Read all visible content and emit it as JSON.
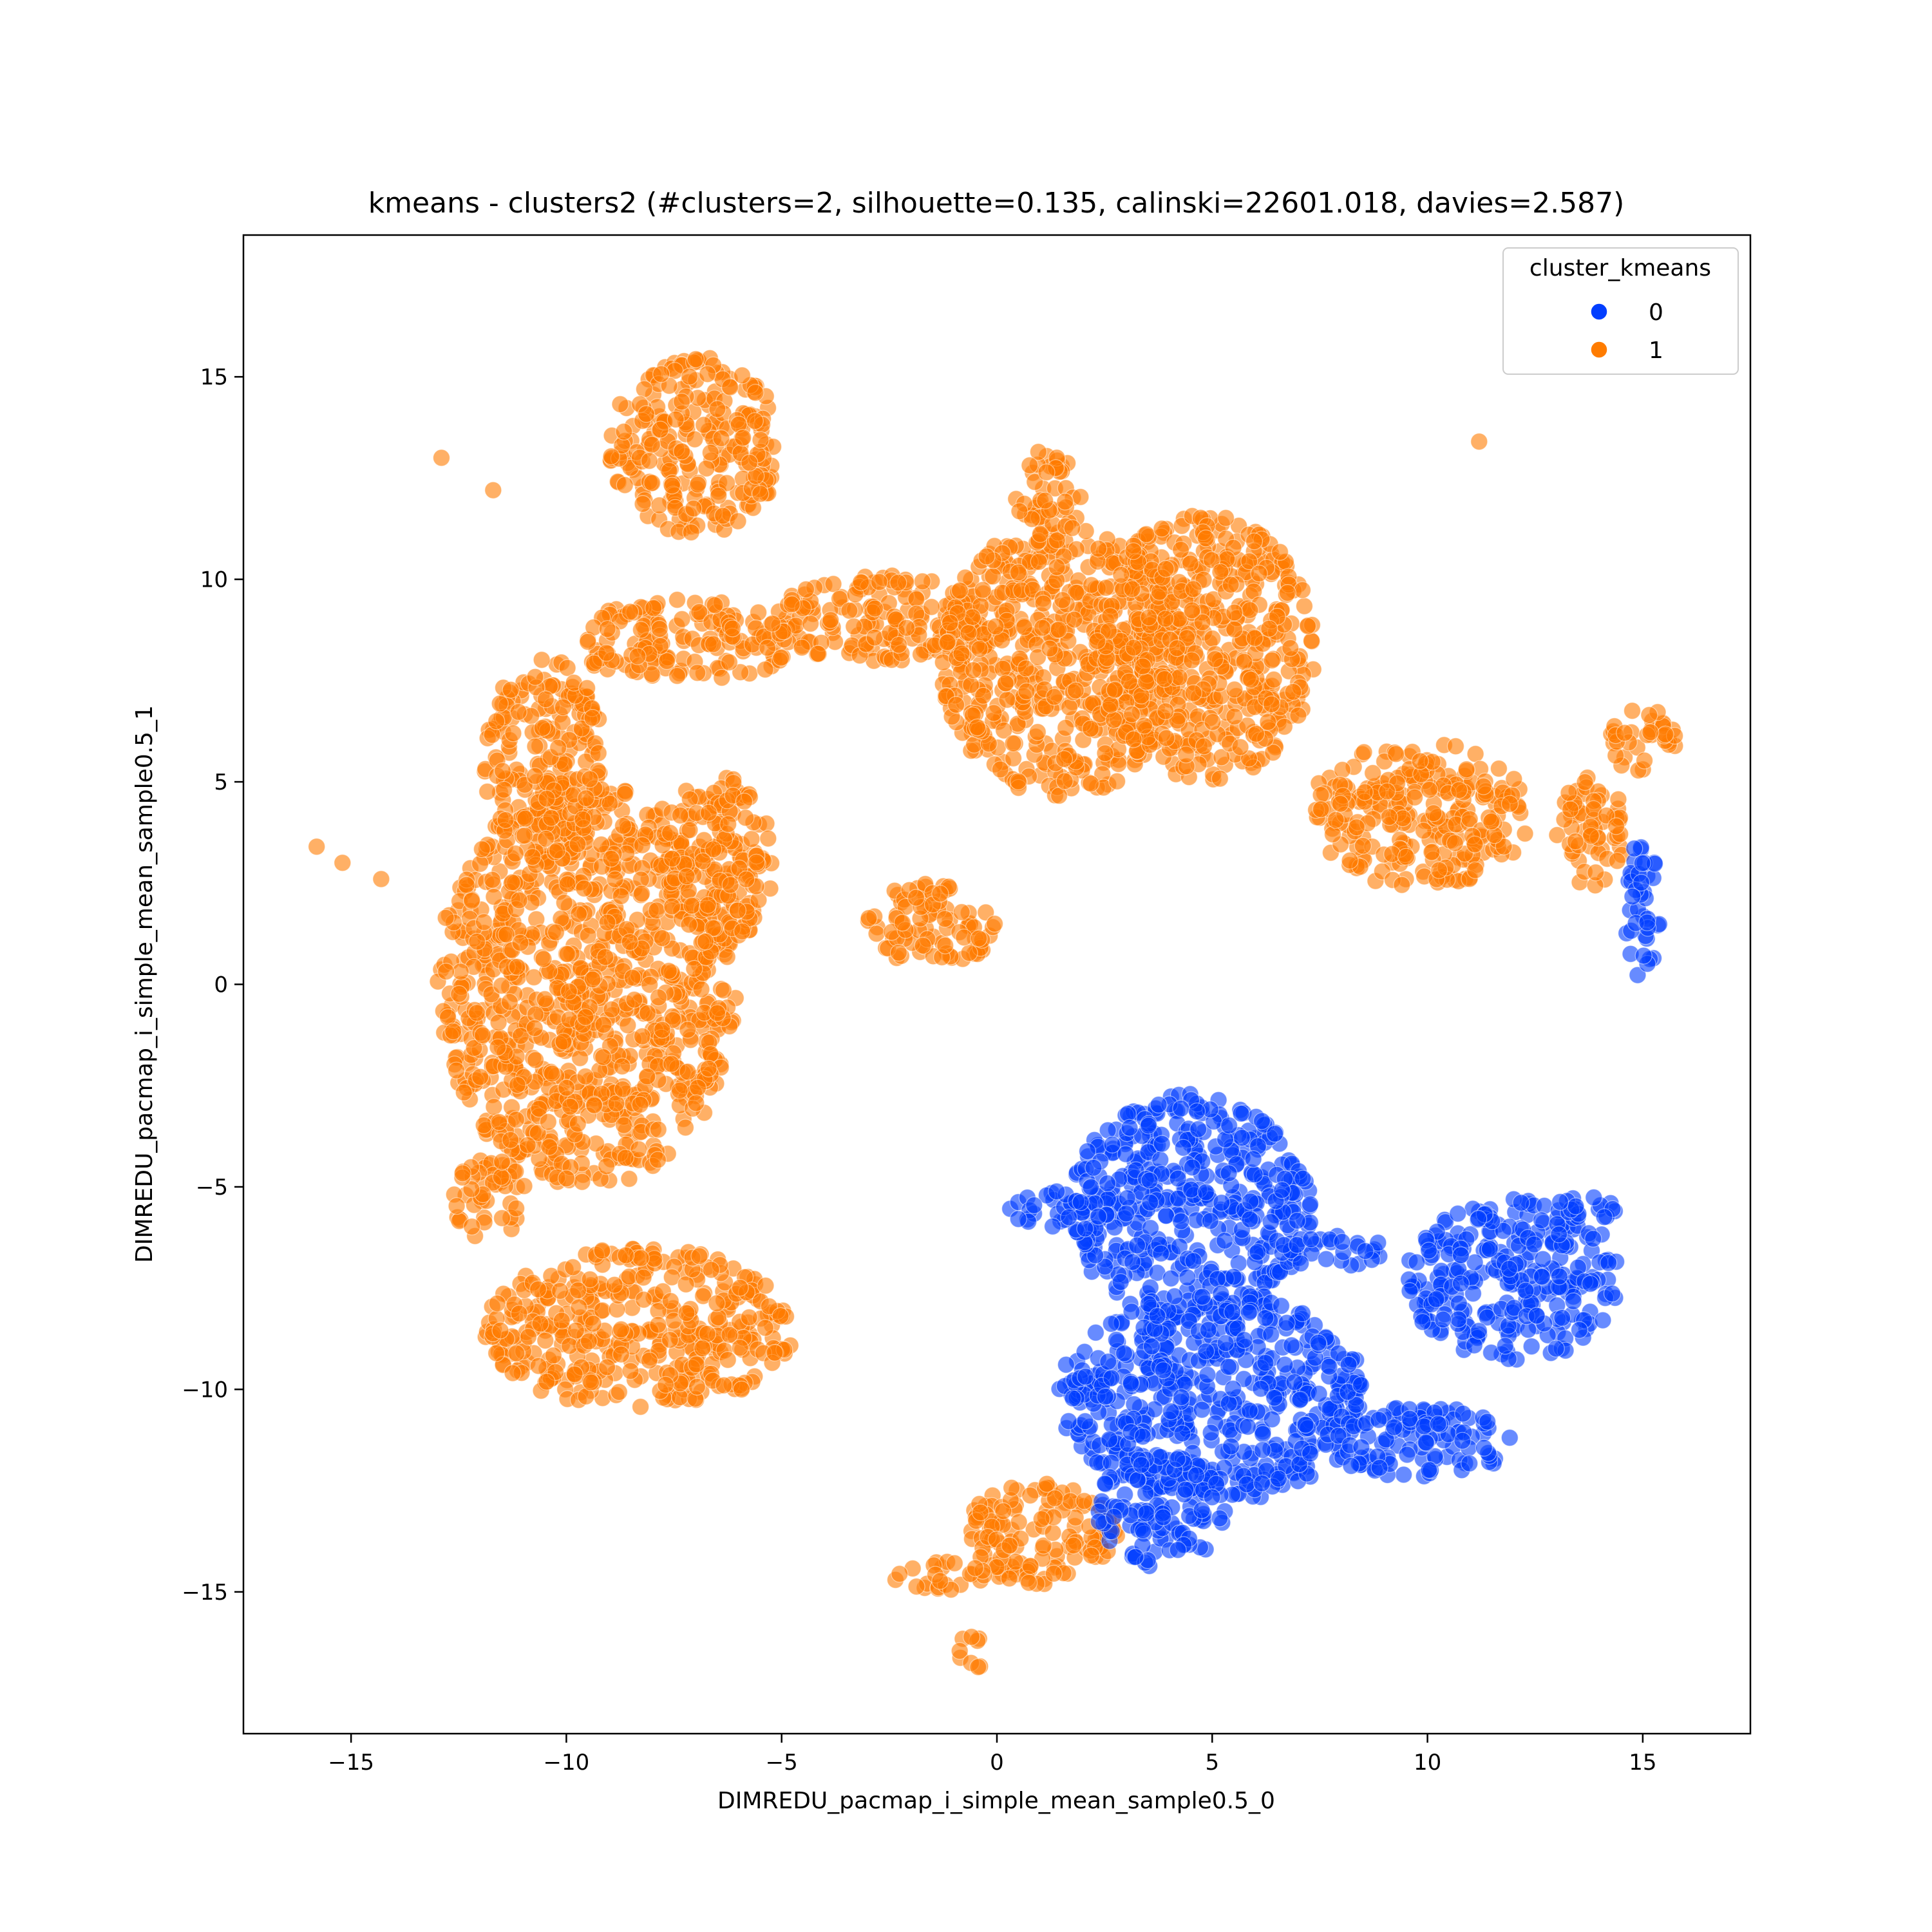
{
  "chart_data": {
    "type": "scatter",
    "title": "kmeans - clusters2 (#clusters=2, silhouette=0.135, calinski=22601.018, davies=2.587)",
    "xlabel": "DIMREDU_pacmap_i_simple_mean_sample0.5_0",
    "ylabel": "DIMREDU_pacmap_i_simple_mean_sample0.5_1",
    "xlim": [
      -17.5,
      17.5
    ],
    "ylim": [
      -18.5,
      18.5
    ],
    "xticks": [
      -15,
      -10,
      -5,
      0,
      5,
      10,
      15
    ],
    "yticks": [
      -15,
      -10,
      -5,
      0,
      5,
      10,
      15
    ],
    "xtick_labels": [
      "−15",
      "−10",
      "−5",
      "0",
      "5",
      "10",
      "15"
    ],
    "ytick_labels": [
      "−15",
      "−10",
      "−5",
      "0",
      "5",
      "10",
      "15"
    ],
    "grid": false,
    "legend": {
      "title": "cluster_kmeans",
      "placement": "top-right",
      "entries": [
        {
          "label": "0",
          "color": "#023eff"
        },
        {
          "label": "1",
          "color": "#ff7c00"
        }
      ]
    },
    "series": [
      {
        "name": "0",
        "color": "#023eff",
        "regions": [
          {
            "cx": 4.5,
            "cy": -5.5,
            "rx": 2.8,
            "ry": 2.8
          },
          {
            "cx": 1.5,
            "cy": -5.6,
            "rx": 1.2,
            "ry": 0.5
          },
          {
            "cx": 5.0,
            "cy": -10.2,
            "rx": 3.6,
            "ry": 2.6
          },
          {
            "cx": 12.0,
            "cy": -7.3,
            "rx": 2.5,
            "ry": 2.0
          },
          {
            "cx": 9.8,
            "cy": -11.3,
            "rx": 2.2,
            "ry": 0.9
          },
          {
            "cx": 7.8,
            "cy": -6.6,
            "rx": 1.3,
            "ry": 0.4
          },
          {
            "cx": 3.8,
            "cy": -13.0,
            "rx": 1.5,
            "ry": 1.4
          },
          {
            "cx": 15.0,
            "cy": 1.8,
            "rx": 0.4,
            "ry": 1.8
          },
          {
            "cx": 13.7,
            "cy": -5.5,
            "rx": 0.8,
            "ry": 0.4
          }
        ]
      },
      {
        "name": "1",
        "color": "#ff7c00",
        "regions": [
          {
            "cx": -9.5,
            "cy": 0.0,
            "rx": 3.5,
            "ry": 5.0
          },
          {
            "cx": -10.5,
            "cy": 5.5,
            "rx": 1.4,
            "ry": 2.6
          },
          {
            "cx": -8.3,
            "cy": -8.5,
            "rx": 3.6,
            "ry": 2.0
          },
          {
            "cx": -11.8,
            "cy": -5.3,
            "rx": 0.9,
            "ry": 1.0
          },
          {
            "cx": -7.0,
            "cy": 13.3,
            "rx": 2.0,
            "ry": 2.2
          },
          {
            "cx": -7.2,
            "cy": 8.5,
            "rx": 2.8,
            "ry": 1.0
          },
          {
            "cx": -6.5,
            "cy": 3.0,
            "rx": 1.3,
            "ry": 2.2
          },
          {
            "cx": -2.5,
            "cy": 9.0,
            "rx": 2.8,
            "ry": 1.1
          },
          {
            "cx": 1.5,
            "cy": 8.0,
            "rx": 2.8,
            "ry": 3.4
          },
          {
            "cx": 4.8,
            "cy": 8.3,
            "rx": 2.6,
            "ry": 3.3
          },
          {
            "cx": 9.8,
            "cy": 4.2,
            "rx": 2.6,
            "ry": 1.8
          },
          {
            "cx": 1.2,
            "cy": 12.0,
            "rx": 0.8,
            "ry": 1.2
          },
          {
            "cx": 1.0,
            "cy": -13.6,
            "rx": 1.8,
            "ry": 1.3
          },
          {
            "cx": -1.3,
            "cy": -14.6,
            "rx": 1.1,
            "ry": 0.4
          },
          {
            "cx": -0.6,
            "cy": -16.5,
            "rx": 0.4,
            "ry": 0.4
          },
          {
            "cx": -1.5,
            "cy": 1.5,
            "rx": 1.6,
            "ry": 1.0
          },
          {
            "cx": 13.8,
            "cy": 3.8,
            "rx": 0.8,
            "ry": 1.4
          },
          {
            "cx": 15.0,
            "cy": 6.0,
            "rx": 0.8,
            "ry": 0.8
          }
        ],
        "outliers": [
          {
            "x": -12.9,
            "y": 13.0
          },
          {
            "x": -11.7,
            "y": 12.2
          },
          {
            "x": 11.2,
            "y": 13.4
          },
          {
            "x": -15.8,
            "y": 3.4
          },
          {
            "x": -15.2,
            "y": 3.0
          },
          {
            "x": -14.3,
            "y": 2.6
          }
        ]
      }
    ]
  }
}
